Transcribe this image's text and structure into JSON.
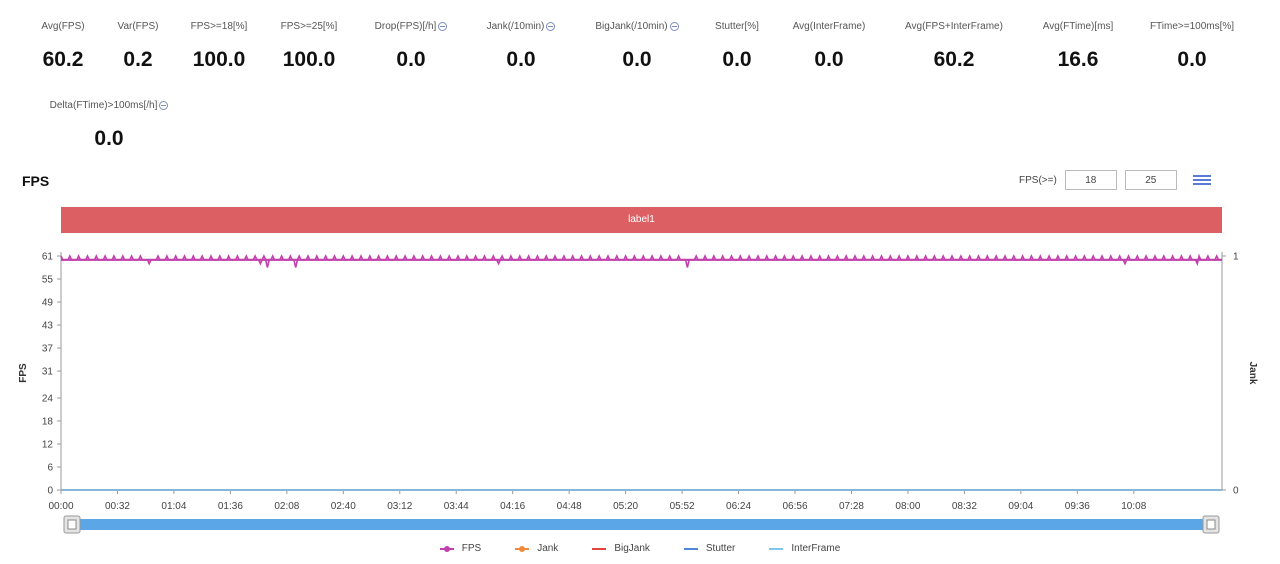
{
  "stats": [
    {
      "label": "Avg(FPS)",
      "value": "60.2",
      "info": false
    },
    {
      "label": "Var(FPS)",
      "value": "0.2",
      "info": false
    },
    {
      "label": "FPS>=18[%]",
      "value": "100.0",
      "info": false
    },
    {
      "label": "FPS>=25[%]",
      "value": "100.0",
      "info": false
    },
    {
      "label": "Drop(FPS)[/h]",
      "value": "0.0",
      "info": true
    },
    {
      "label": "Jank(/10min)",
      "value": "0.0",
      "info": true
    },
    {
      "label": "BigJank(/10min)",
      "value": "0.0",
      "info": true
    },
    {
      "label": "Stutter[%]",
      "value": "0.0",
      "info": false
    },
    {
      "label": "Avg(InterFrame)",
      "value": "0.0",
      "info": false
    },
    {
      "label": "Avg(FPS+InterFrame)",
      "value": "60.2",
      "info": false
    },
    {
      "label": "Avg(FTime)[ms]",
      "value": "16.6",
      "info": false
    },
    {
      "label": "FTime>=100ms[%]",
      "value": "0.0",
      "info": false
    },
    {
      "label": "Delta(FTime)>100ms[/h]",
      "value": "0.0",
      "info": true
    }
  ],
  "toolbar": {
    "title": "FPS",
    "fps_filter_label": "FPS(>=)",
    "fps_filter_values": [
      "18",
      "25"
    ],
    "menu_icon": "list-icon"
  },
  "label_bar": {
    "text": "label1",
    "color": "#dc5f63"
  },
  "chart_data": {
    "type": "line",
    "ylabel": "FPS",
    "y2label": "Jank",
    "ylim": [
      0,
      61
    ],
    "yticks": [
      0,
      6,
      12,
      18,
      24,
      31,
      37,
      43,
      49,
      55,
      61
    ],
    "y2lim": [
      0,
      1
    ],
    "y2ticks": [
      0,
      1
    ],
    "xlim_seconds": [
      0,
      658
    ],
    "xticks": [
      "00:00",
      "00:32",
      "01:04",
      "01:36",
      "02:08",
      "02:40",
      "03:12",
      "03:44",
      "04:16",
      "04:48",
      "05:20",
      "05:52",
      "06:24",
      "06:56",
      "07:28",
      "08:00",
      "08:32",
      "09:04",
      "09:36",
      "10:08"
    ],
    "grid": false,
    "legend_position": "bottom",
    "series": [
      {
        "name": "FPS",
        "color": "#c23fae",
        "baseline": 60,
        "peak": 61,
        "dips": [
          {
            "t": 50,
            "v": 59
          },
          {
            "t": 113,
            "v": 59
          },
          {
            "t": 117,
            "v": 58
          },
          {
            "t": 133,
            "v": 58
          },
          {
            "t": 248,
            "v": 59
          },
          {
            "t": 355,
            "v": 58
          },
          {
            "t": 603,
            "v": 59
          },
          {
            "t": 644,
            "v": 59
          }
        ]
      },
      {
        "name": "Jank",
        "color": "#f08a3c",
        "values": [
          0
        ]
      },
      {
        "name": "BigJank",
        "color": "#e0463a",
        "values": [
          0
        ]
      },
      {
        "name": "Stutter",
        "color": "#4f86d9",
        "values": [
          0
        ]
      },
      {
        "name": "InterFrame",
        "color": "#7cc8ec",
        "values": [
          0
        ]
      }
    ]
  },
  "scrollbar": {
    "color": "#5aa6e6"
  }
}
